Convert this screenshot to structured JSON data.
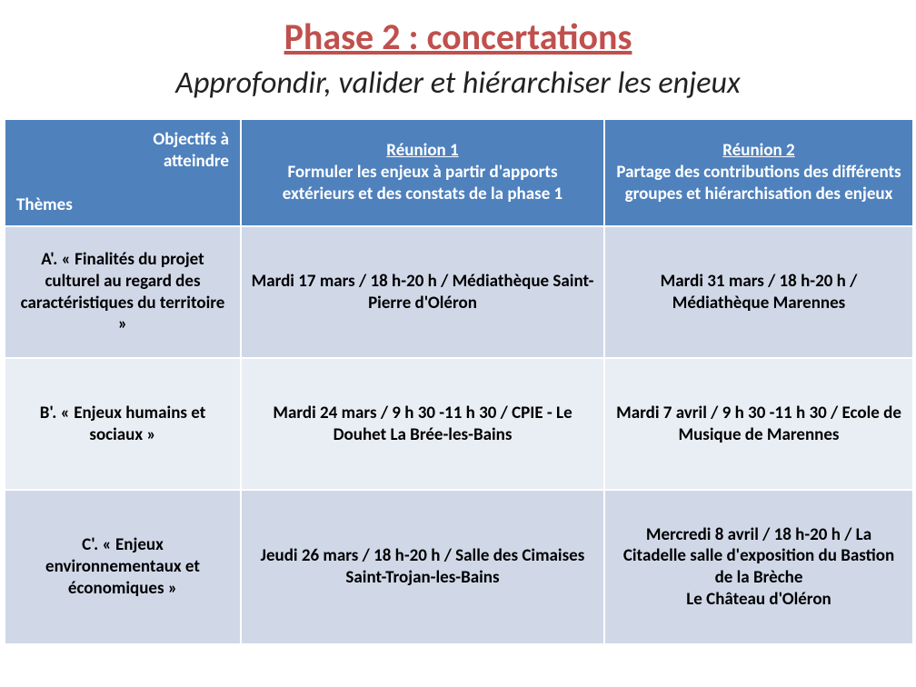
{
  "title": "Phase 2 : concertations",
  "subtitle": "Approfondir, valider et hiérarchiser les enjeux",
  "header": {
    "corner_top": "Objectifs à\natteindre",
    "corner_bottom": "Thèmes",
    "col2_title": "Réunion 1",
    "col2_desc": "Formuler les enjeux à partir d'apports extérieurs et des constats de la phase 1",
    "col3_title": "Réunion 2",
    "col3_desc": "Partage des contributions des différents groupes et hiérarchisation des enjeux"
  },
  "rows": [
    {
      "theme": "A'. « Finalités du projet culturel au regard des caractéristiques du territoire »",
      "r1": "Mardi 17 mars  / 18 h-20 h / Médiathèque Saint-Pierre d'Oléron",
      "r2": "Mardi 31 mars / 18 h-20 h / Médiathèque Marennes"
    },
    {
      "theme": "B'. « Enjeux humains et sociaux »",
      "r1": "Mardi 24 mars / 9 h 30 -11 h 30 / CPIE - Le Douhet La Brée-les-Bains",
      "r2": "Mardi 7 avril / 9 h 30 -11 h 30 / Ecole de Musique de Marennes"
    },
    {
      "theme": "C'. « Enjeux environnementaux et économiques »",
      "r1": "Jeudi 26 mars / 18 h-20 h / Salle des Cimaises Saint-Trojan-les-Bains",
      "r2": "Mercredi 8 avril / 18 h-20 h / La Citadelle salle d'exposition du Bastion de la Brèche\nLe Château d'Oléron"
    }
  ],
  "colors": {
    "accent_title": "#c0504d",
    "header_bg": "#4f81bd",
    "row_alt_a": "#d0d8e8",
    "row_alt_b": "#e9edf4",
    "border": "#ffffff",
    "text": "#000000"
  }
}
